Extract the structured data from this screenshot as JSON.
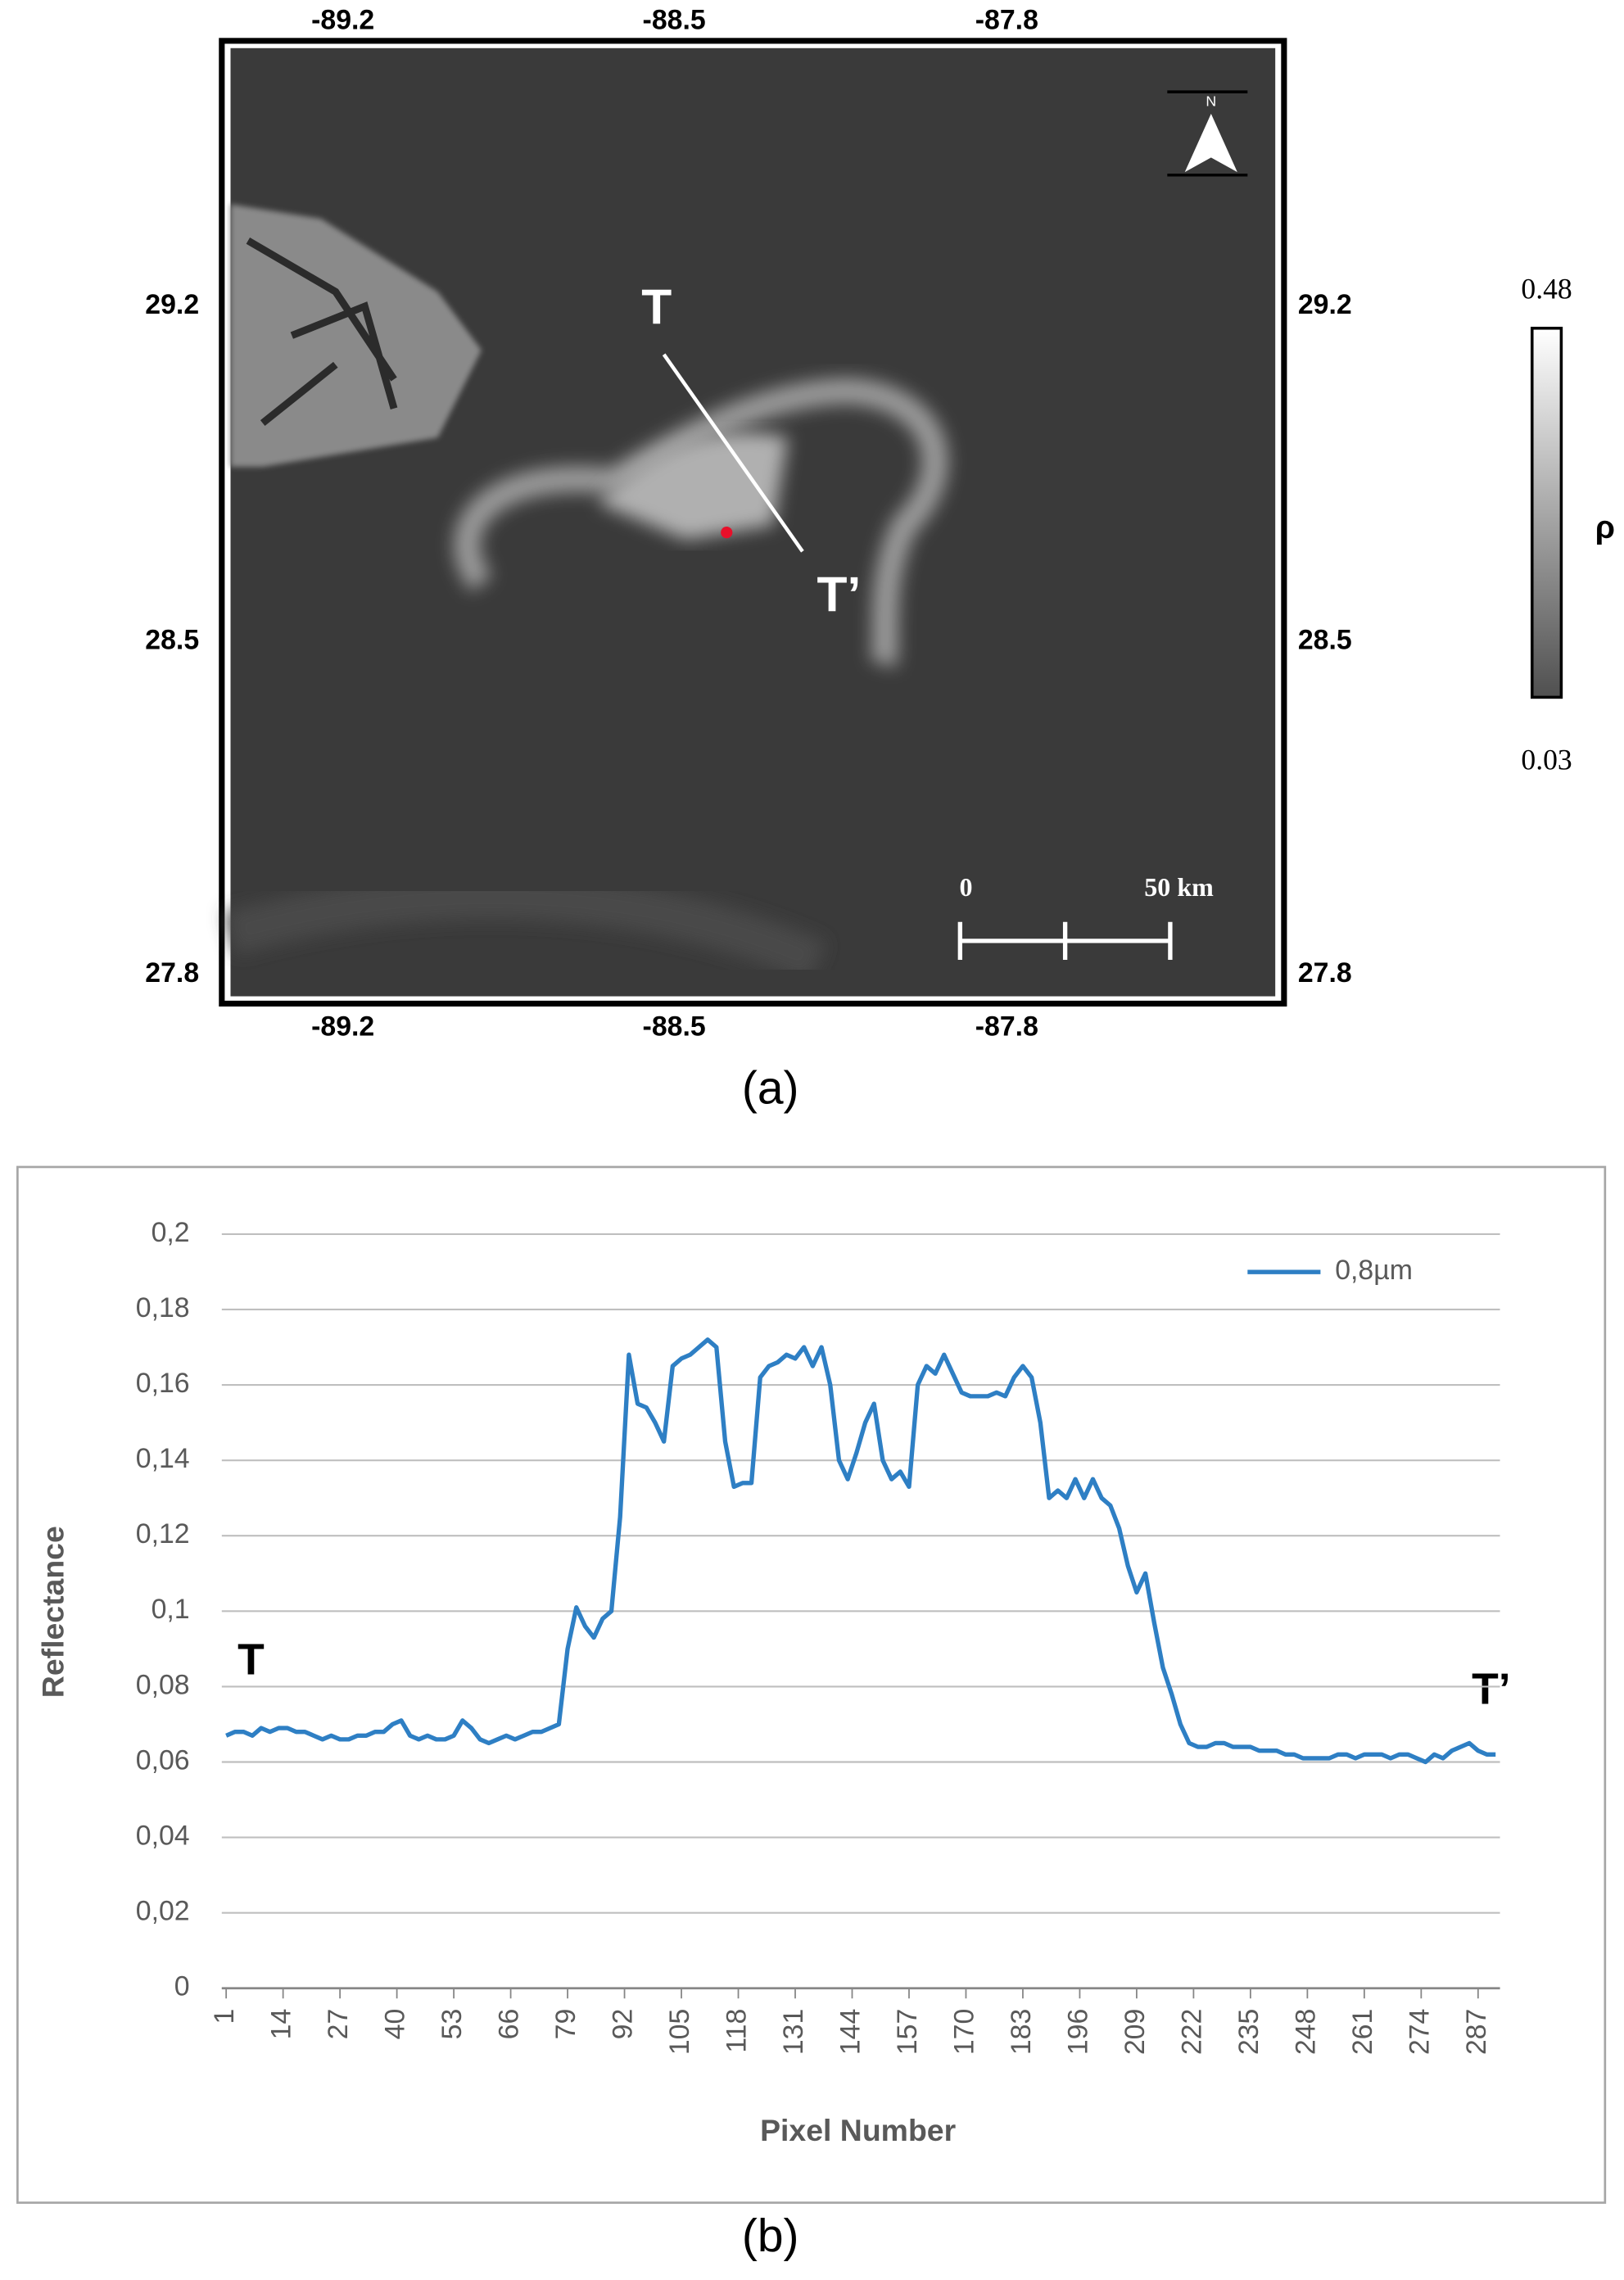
{
  "map": {
    "top_ticks": [
      "-89.2",
      "-88.5",
      "-87.8"
    ],
    "bottom_ticks": [
      "-89.2",
      "-88.5",
      "-87.8"
    ],
    "left_ticks": [
      "29.2",
      "28.5",
      "27.8"
    ],
    "right_ticks": [
      "29.2",
      "28.5",
      "27.8"
    ],
    "colorbar": {
      "max": "0.48",
      "min": "0.03",
      "label": "ρ"
    },
    "transect": {
      "start": "T",
      "end": "T’"
    },
    "scale_bar": {
      "start": "0",
      "end": "50 km"
    },
    "north": "N",
    "caption": "(a)"
  },
  "chart_data": {
    "type": "line",
    "xlabel": "Pixel Number",
    "ylabel": "Reflectance",
    "annotations": [
      "T",
      "T’"
    ],
    "caption": "(b)",
    "x": [
      1,
      3,
      5,
      7,
      9,
      11,
      13,
      15,
      17,
      19,
      21,
      23,
      25,
      27,
      29,
      31,
      33,
      35,
      37,
      39,
      41,
      43,
      45,
      47,
      49,
      51,
      53,
      55,
      57,
      59,
      61,
      63,
      65,
      67,
      69,
      71,
      73,
      75,
      77,
      79,
      81,
      83,
      85,
      87,
      89,
      91,
      93,
      95,
      97,
      99,
      101,
      103,
      105,
      107,
      109,
      111,
      113,
      115,
      117,
      119,
      121,
      123,
      125,
      127,
      129,
      131,
      133,
      135,
      137,
      139,
      141,
      143,
      145,
      147,
      149,
      151,
      153,
      155,
      157,
      159,
      161,
      163,
      165,
      167,
      169,
      171,
      173,
      175,
      177,
      179,
      181,
      183,
      185,
      187,
      189,
      191,
      193,
      195,
      197,
      199,
      201,
      203,
      205,
      207,
      209,
      211,
      213,
      215,
      217,
      219,
      221,
      223,
      225,
      227,
      229,
      231,
      233,
      235,
      237,
      239,
      241,
      243,
      245,
      247,
      249,
      251,
      253,
      255,
      257,
      259,
      261,
      263,
      265,
      267,
      269,
      271,
      273,
      275,
      277,
      279,
      281,
      283,
      285,
      287,
      289,
      291
    ],
    "series": [
      {
        "name": "0,8µm",
        "color": "#2e7fc4",
        "values": [
          0.067,
          0.068,
          0.068,
          0.067,
          0.069,
          0.068,
          0.069,
          0.069,
          0.068,
          0.068,
          0.067,
          0.066,
          0.067,
          0.066,
          0.066,
          0.067,
          0.067,
          0.068,
          0.068,
          0.07,
          0.071,
          0.067,
          0.066,
          0.067,
          0.066,
          0.066,
          0.067,
          0.071,
          0.069,
          0.066,
          0.065,
          0.066,
          0.067,
          0.066,
          0.067,
          0.068,
          0.068,
          0.069,
          0.07,
          0.09,
          0.101,
          0.096,
          0.093,
          0.098,
          0.1,
          0.125,
          0.168,
          0.155,
          0.154,
          0.15,
          0.145,
          0.165,
          0.167,
          0.168,
          0.17,
          0.172,
          0.17,
          0.145,
          0.133,
          0.134,
          0.134,
          0.162,
          0.165,
          0.166,
          0.168,
          0.167,
          0.17,
          0.165,
          0.17,
          0.16,
          0.14,
          0.135,
          0.142,
          0.15,
          0.155,
          0.14,
          0.135,
          0.137,
          0.133,
          0.16,
          0.165,
          0.163,
          0.168,
          0.163,
          0.158,
          0.157,
          0.157,
          0.157,
          0.158,
          0.157,
          0.162,
          0.165,
          0.162,
          0.15,
          0.13,
          0.132,
          0.13,
          0.135,
          0.13,
          0.135,
          0.13,
          0.128,
          0.122,
          0.112,
          0.105,
          0.11,
          0.097,
          0.085,
          0.078,
          0.07,
          0.065,
          0.064,
          0.064,
          0.065,
          0.065,
          0.064,
          0.064,
          0.064,
          0.063,
          0.063,
          0.063,
          0.062,
          0.062,
          0.061,
          0.061,
          0.061,
          0.061,
          0.062,
          0.062,
          0.061,
          0.062,
          0.062,
          0.062,
          0.061,
          0.062,
          0.062,
          0.061,
          0.06,
          0.062,
          0.061,
          0.063,
          0.064,
          0.065,
          0.063,
          0.062,
          0.062
        ]
      }
    ],
    "xlim": [
      0,
      292
    ],
    "xticks": [
      1,
      14,
      27,
      40,
      53,
      66,
      79,
      92,
      105,
      118,
      131,
      144,
      157,
      170,
      183,
      196,
      209,
      222,
      235,
      248,
      261,
      274,
      287
    ],
    "ylim": [
      0,
      0.2
    ],
    "yticks": [
      0,
      {
        "value": 0.02,
        "label": "0,02"
      },
      {
        "value": 0.04,
        "label": "0,04"
      },
      {
        "value": 0.06,
        "label": "0,06"
      },
      {
        "value": 0.08,
        "label": "0,08"
      },
      {
        "value": 0.1,
        "label": "0,1"
      },
      {
        "value": 0.12,
        "label": "0,12"
      },
      {
        "value": 0.14,
        "label": "0,14"
      },
      {
        "value": 0.16,
        "label": "0,16"
      },
      {
        "value": 0.18,
        "label": "0,18"
      },
      {
        "value": 0.2,
        "label": "0,2"
      }
    ],
    "grid": true,
    "legend": "top-right"
  }
}
